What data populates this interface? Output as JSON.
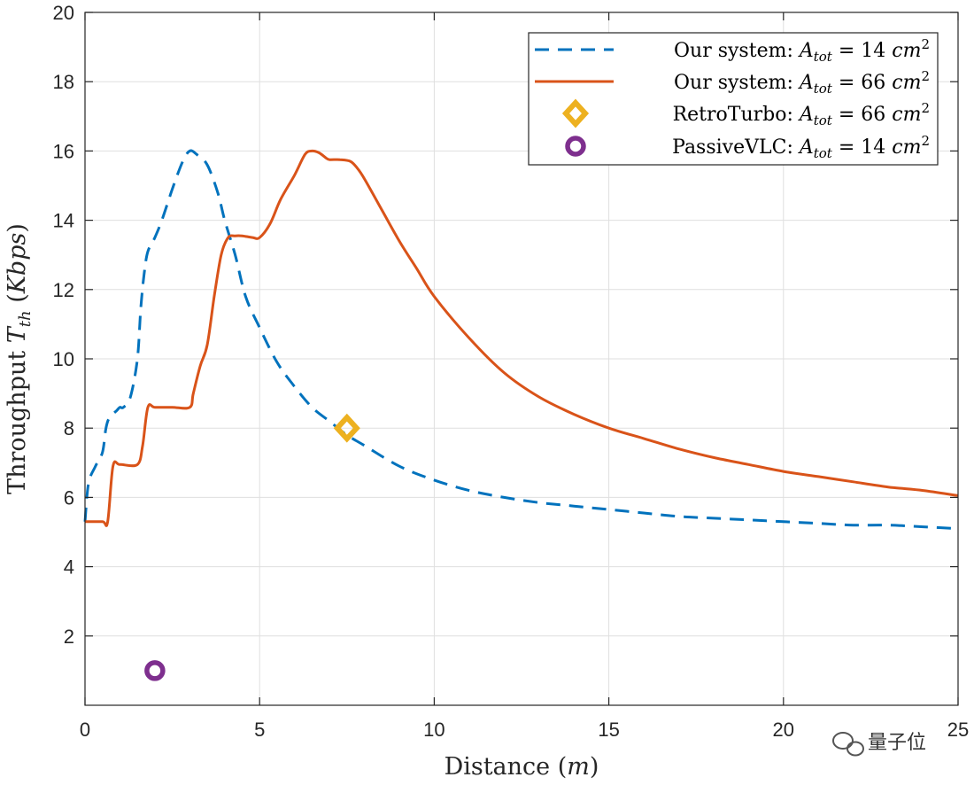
{
  "chart_data": {
    "type": "line",
    "title": "",
    "xlabel": "Distance (m)",
    "ylabel": "Throughput T_th (Kbps)",
    "xlim": [
      0,
      25
    ],
    "ylim": [
      0,
      20
    ],
    "xticks": [
      0,
      5,
      10,
      15,
      20,
      25
    ],
    "yticks": [
      2,
      4,
      6,
      8,
      10,
      12,
      14,
      16,
      18,
      20
    ],
    "grid": true,
    "legend_position": "top-right",
    "series": [
      {
        "name": "Our system: A_tot = 14 cm^2",
        "style": "dashed",
        "color": "#0072BD",
        "x": [
          0,
          0.1,
          0.3,
          0.5,
          0.6,
          0.7,
          0.9,
          1.0,
          1.1,
          1.3,
          1.5,
          1.6,
          1.7,
          1.8,
          2.0,
          2.2,
          2.5,
          2.8,
          3.0,
          3.2,
          3.5,
          3.8,
          4.0,
          4.3,
          4.6,
          5.0,
          5.5,
          6.0,
          6.5,
          7.0,
          7.5,
          8.0,
          9.0,
          10.0,
          11.0,
          12.0,
          13.0,
          14.0,
          15.0,
          16.0,
          17.0,
          18.0,
          19.0,
          20.0,
          21.0,
          22.0,
          23.0,
          24.0,
          25.0
        ],
        "y": [
          5.3,
          6.4,
          6.9,
          7.3,
          8.0,
          8.3,
          8.5,
          8.6,
          8.6,
          8.9,
          10.0,
          11.5,
          12.5,
          13.1,
          13.5,
          14.0,
          14.9,
          15.7,
          16.0,
          15.9,
          15.6,
          14.8,
          14.0,
          13.0,
          11.8,
          10.9,
          9.9,
          9.2,
          8.6,
          8.2,
          7.8,
          7.5,
          6.9,
          6.5,
          6.2,
          6.0,
          5.85,
          5.75,
          5.65,
          5.55,
          5.45,
          5.4,
          5.35,
          5.3,
          5.25,
          5.2,
          5.2,
          5.15,
          5.1
        ]
      },
      {
        "name": "Our system: A_tot = 66 cm^2",
        "style": "solid",
        "color": "#D95319",
        "x": [
          0,
          0.5,
          0.65,
          0.8,
          1.0,
          1.5,
          1.65,
          1.8,
          2.0,
          2.5,
          3.0,
          3.1,
          3.3,
          3.5,
          3.7,
          3.9,
          4.1,
          4.3,
          4.5,
          4.8,
          5.0,
          5.3,
          5.6,
          6.0,
          6.3,
          6.5,
          6.7,
          6.9,
          7.0,
          7.3,
          7.6,
          7.8,
          8.0,
          8.5,
          9.0,
          9.5,
          10.0,
          11.0,
          12.0,
          13.0,
          14.0,
          15.0,
          16.0,
          17.0,
          18.0,
          19.0,
          20.0,
          21.0,
          22.0,
          23.0,
          24.0,
          25.0
        ],
        "y": [
          5.3,
          5.3,
          5.3,
          6.9,
          6.95,
          6.95,
          7.5,
          8.6,
          8.6,
          8.6,
          8.6,
          9.0,
          9.8,
          10.4,
          11.8,
          13.0,
          13.5,
          13.55,
          13.55,
          13.5,
          13.5,
          13.9,
          14.6,
          15.3,
          15.9,
          16.0,
          15.95,
          15.8,
          15.75,
          15.75,
          15.7,
          15.5,
          15.2,
          14.3,
          13.4,
          12.6,
          11.8,
          10.6,
          9.6,
          8.9,
          8.4,
          8.0,
          7.7,
          7.4,
          7.15,
          6.95,
          6.75,
          6.6,
          6.45,
          6.3,
          6.2,
          6.05
        ]
      },
      {
        "name": "RetroTurbo: A_tot = 66 cm^2",
        "style": "marker-diamond",
        "color": "#EDB120",
        "x": [
          7.5
        ],
        "y": [
          8.0
        ]
      },
      {
        "name": "PassiveVLC: A_tot = 14 cm^2",
        "style": "marker-circle",
        "color": "#7E2F8E",
        "x": [
          2.0
        ],
        "y": [
          1.0
        ]
      }
    ],
    "legend": [
      {
        "prefix": "Our system:",
        "sym": "A",
        "sub": "tot",
        "eq": "= 14",
        "unit": "cm",
        "sup": "2"
      },
      {
        "prefix": "Our system:",
        "sym": "A",
        "sub": "tot",
        "eq": "= 66",
        "unit": "cm",
        "sup": "2"
      },
      {
        "prefix": "RetroTurbo:",
        "sym": "A",
        "sub": "tot",
        "eq": "= 66",
        "unit": "cm",
        "sup": "2"
      },
      {
        "prefix": "PassiveVLC:",
        "sym": "A",
        "sub": "tot",
        "eq": "= 14",
        "unit": "cm",
        "sup": "2"
      }
    ],
    "xlabel_parts": {
      "text": "Distance (",
      "var": "m",
      "close": ")"
    },
    "ylabel_parts": {
      "text": "Throughput ",
      "var": "T",
      "sub": "th",
      "open": " (",
      "unit": "Kbps",
      "close": ")"
    }
  },
  "watermark": {
    "text": "量子位"
  }
}
